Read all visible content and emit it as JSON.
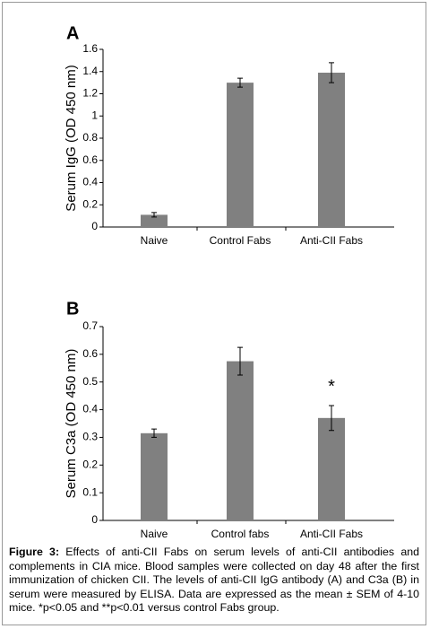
{
  "chart_data": [
    {
      "type": "bar",
      "panel": "A",
      "ylabel": "Serum IgG (OD 450 nm)",
      "categories": [
        "Naive",
        "Control  Fabs",
        "Anti-CII Fabs"
      ],
      "values": [
        0.11,
        1.3,
        1.39
      ],
      "errors": [
        0.02,
        0.04,
        0.09
      ],
      "color": "#808080",
      "ylim": [
        0,
        1.6
      ],
      "yticks": [
        0,
        0.2,
        0.4,
        0.6,
        0.8,
        1,
        1.2,
        1.4,
        1.6
      ]
    },
    {
      "type": "bar",
      "panel": "B",
      "ylabel": "Serum C3a (OD 450 nm)",
      "categories": [
        "Naive",
        "Control fabs",
        "Anti-CII Fabs"
      ],
      "values": [
        0.315,
        0.575,
        0.37
      ],
      "errors": [
        0.015,
        0.05,
        0.045
      ],
      "color": "#808080",
      "ylim": [
        0,
        0.7
      ],
      "yticks": [
        0,
        0.1,
        0.2,
        0.3,
        0.4,
        0.5,
        0.6,
        0.7
      ],
      "annotations": [
        {
          "text": "*",
          "category": "Anti-CII Fabs"
        }
      ]
    }
  ],
  "caption": {
    "label": "Figure 3:",
    "text": "Effects of anti-CII Fabs on serum levels of anti-CII antibodies and complements in CIA mice. Blood samples were collected on day 48 after the first immunization of chicken CII. The levels of anti-CII IgG antibody (A) and C3a (B) in serum were measured by ELISA. Data are expressed as the mean ± SEM of 4-10 mice. *p<0.05 and **p<0.01 versus control Fabs group."
  }
}
